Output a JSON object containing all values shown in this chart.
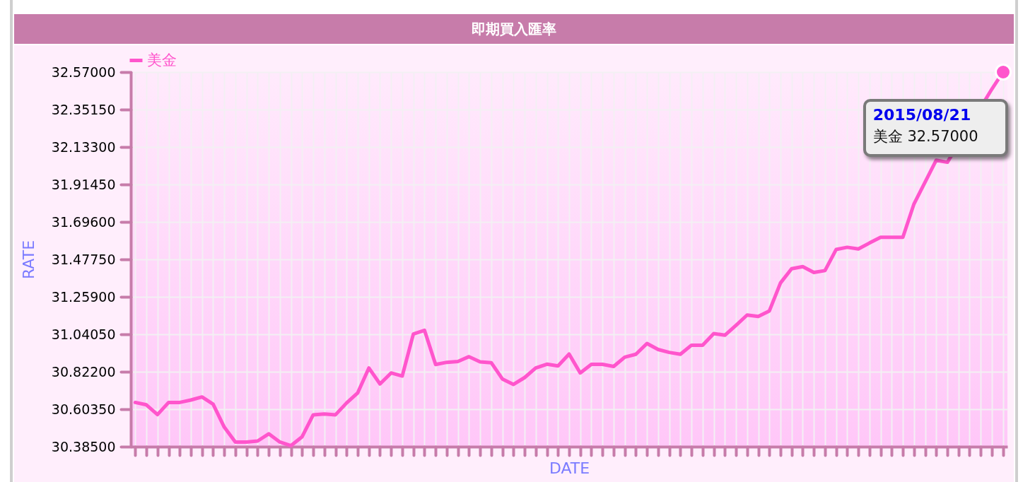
{
  "chart_data": {
    "type": "line",
    "title": "即期買入匯率",
    "xlabel": "DATE",
    "ylabel": "RATE",
    "categories": [
      null,
      null,
      null,
      null,
      null,
      null,
      null,
      null,
      null,
      null,
      null,
      null,
      null,
      null,
      null,
      null,
      null,
      null,
      null,
      null,
      null,
      null,
      null,
      null,
      null,
      null,
      null,
      null,
      null,
      null,
      null,
      null,
      null,
      null,
      null,
      null,
      null,
      null,
      null,
      null,
      null,
      null,
      null,
      null,
      null,
      null,
      null,
      null,
      null,
      null,
      null,
      null,
      null,
      null,
      null,
      null,
      null,
      null,
      null,
      null,
      null,
      null,
      null,
      null,
      null,
      null,
      null,
      null,
      null,
      null,
      null,
      null,
      null,
      null,
      null,
      null,
      null,
      null,
      null
    ],
    "series": [
      {
        "name": "美金",
        "color": "#ff55cc",
        "values": [
          30.643,
          30.629,
          30.572,
          30.643,
          30.643,
          30.657,
          30.675,
          30.633,
          30.499,
          30.412,
          30.412,
          30.418,
          30.46,
          30.412,
          30.391,
          30.443,
          30.571,
          30.576,
          30.571,
          30.64,
          30.699,
          30.844,
          30.751,
          30.815,
          30.797,
          31.042,
          31.064,
          30.864,
          30.877,
          30.882,
          30.91,
          30.88,
          30.875,
          30.78,
          30.748,
          30.788,
          30.844,
          30.866,
          30.856,
          30.925,
          30.815,
          30.865,
          30.865,
          30.853,
          30.907,
          30.924,
          30.987,
          30.952,
          30.935,
          30.924,
          30.977,
          30.977,
          31.045,
          31.035,
          31.093,
          31.153,
          31.145,
          31.177,
          31.34,
          31.423,
          31.435,
          31.401,
          31.412,
          31.535,
          31.548,
          31.538,
          31.573,
          31.606,
          31.606,
          31.606,
          31.801,
          null,
          32.056,
          32.044,
          null,
          null,
          null,
          32.471,
          32.57
        ]
      }
    ],
    "ylim": [
      30.385,
      32.57
    ],
    "yticks": [
      {
        "value": 30.385,
        "label": "30.38500"
      },
      {
        "value": 30.6035,
        "label": "30.60350"
      },
      {
        "value": 30.822,
        "label": "30.82200"
      },
      {
        "value": 31.0405,
        "label": "31.04050"
      },
      {
        "value": 31.259,
        "label": "31.25900"
      },
      {
        "value": 31.4775,
        "label": "31.47750"
      },
      {
        "value": 31.696,
        "label": "31.69600"
      },
      {
        "value": 31.9145,
        "label": "31.91450"
      },
      {
        "value": 32.133,
        "label": "32.13300"
      },
      {
        "value": 32.3515,
        "label": "32.35150"
      },
      {
        "value": 32.57,
        "label": "32.57000"
      }
    ],
    "annotations": [
      "2015/08/21\n美金 32.57000"
    ],
    "grid": true,
    "legend": "top left",
    "tick_labels": "y"
  }
}
